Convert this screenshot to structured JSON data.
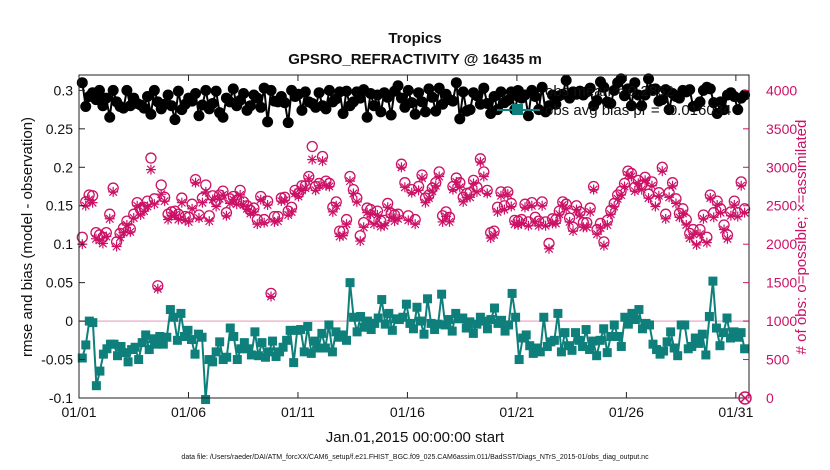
{
  "chart_data": {
    "type": "line",
    "title": "Tropics",
    "subtitle": "GPSRO_REFRACTIVITY @ 16435 m",
    "xlabel": "Jan.01,2015 00:00:00 start",
    "ylabel": "rmse and bias (model - observation)",
    "ylabel_right": "# of obs: o=possible; ×=assimilated",
    "footnote": "data file: /Users/raeder/DAI/ATM_forcXX/CAM6_setup/f.e21.FHIST_BGC.f09_025.CAM6assim.011/BadSST/Diags_NTrS_2015-01/obs_diag_output.nc",
    "ylim": [
      -0.1,
      0.32
    ],
    "ylim_right": [
      0,
      4200
    ],
    "xlim": [
      0,
      30.6
    ],
    "yticks": [
      "-0.1",
      "-0.05",
      "0",
      "0.05",
      "0.1",
      "0.15",
      "0.2",
      "0.25",
      "0.3"
    ],
    "yticks_right": [
      "0",
      "500",
      "1000",
      "1500",
      "2000",
      "2500",
      "3000",
      "3500",
      "4000"
    ],
    "xticks": [
      "01/01",
      "01/06",
      "01/11",
      "01/16",
      "01/21",
      "01/26",
      "01/31"
    ],
    "legend_location": "top-right",
    "series": [
      {
        "name": "obs  mean = 0.2862",
        "axis": "left",
        "color": "#000000",
        "values": [
          0.31,
          0.279,
          0.292,
          0.297,
          0.288,
          0.3,
          0.28,
          0.29,
          0.265,
          0.3,
          0.285,
          0.279,
          0.277,
          0.3,
          0.28,
          0.29,
          0.283,
          0.281,
          0.277,
          0.292,
          0.269,
          0.3,
          0.285,
          0.276,
          0.282,
          0.294,
          0.28,
          0.262,
          0.299,
          0.275,
          0.282,
          0.29,
          0.286,
          0.296,
          0.267,
          0.281,
          0.3,
          0.276,
          0.283,
          0.299,
          0.271,
          0.265,
          0.29,
          0.285,
          0.302,
          0.28,
          0.287,
          0.296,
          0.274,
          0.28,
          0.294,
          0.29,
          0.278,
          0.303,
          0.259,
          0.3,
          0.286,
          0.285,
          0.292,
          0.284,
          0.258,
          0.3,
          0.292,
          0.295,
          0.274,
          0.298,
          0.285,
          0.283,
          0.278,
          0.297,
          0.28,
          0.276,
          0.3,
          0.285,
          0.289,
          0.298,
          0.27,
          0.299,
          0.28,
          0.285,
          0.298,
          0.29,
          0.301,
          0.265,
          0.296,
          0.28,
          0.294,
          0.272,
          0.297,
          0.291,
          0.268,
          0.299,
          0.306,
          0.29,
          0.278,
          0.3,
          0.284,
          0.269,
          0.297,
          0.285,
          0.272,
          0.302,
          0.291,
          0.273,
          0.303,
          0.282,
          0.295,
          0.288,
          0.286,
          0.31,
          0.263,
          0.298,
          0.273,
          0.275,
          0.297,
          0.293,
          0.282,
          0.303,
          0.283,
          0.27,
          0.292,
          0.275,
          0.298,
          0.284,
          0.287,
          0.298,
          0.275,
          0.292,
          0.29,
          0.294,
          0.267,
          0.3,
          0.292,
          0.275,
          0.304,
          0.272,
          0.28,
          0.294,
          0.282,
          0.293,
          0.295,
          0.313,
          0.29,
          0.298,
          0.295,
          0.299,
          0.294,
          0.298,
          0.303,
          0.28,
          0.287,
          0.311,
          0.304,
          0.285,
          0.283,
          0.3,
          0.31,
          0.315,
          0.293,
          0.302,
          0.28,
          0.31,
          0.294,
          0.28,
          0.294,
          0.315,
          0.301,
          0.302,
          0.286,
          0.288,
          0.301,
          0.275,
          0.296,
          0.292,
          0.29,
          0.3,
          0.298,
          0.301,
          0.279,
          0.28,
          0.285,
          0.3,
          0.304,
          0.302,
          0.284,
          0.27,
          0.285,
          0.275,
          0.294,
          0.297,
          0.292,
          0.275,
          0.29,
          0.294
        ]
      },
      {
        "name": "obs  avg bias pr = -0.016034",
        "axis": "left",
        "color": "#0e7f7a",
        "values": [
          -0.048,
          -0.031,
          0.0,
          -0.002,
          -0.084,
          -0.065,
          -0.043,
          -0.036,
          -0.03,
          -0.03,
          -0.045,
          -0.033,
          -0.041,
          -0.053,
          -0.037,
          -0.034,
          -0.05,
          -0.028,
          -0.018,
          -0.037,
          -0.023,
          -0.03,
          -0.02,
          -0.03,
          -0.021,
          0.015,
          0.005,
          -0.025,
          0.01,
          -0.02,
          -0.012,
          -0.024,
          -0.043,
          -0.017,
          -0.021,
          -0.102,
          -0.05,
          -0.053,
          -0.04,
          -0.027,
          -0.05,
          -0.047,
          -0.009,
          -0.02,
          -0.05,
          -0.036,
          -0.028,
          -0.036,
          -0.044,
          -0.014,
          -0.045,
          -0.028,
          -0.047,
          -0.04,
          -0.026,
          -0.046,
          -0.04,
          -0.034,
          -0.025,
          -0.012,
          -0.054,
          -0.012,
          -0.011,
          -0.04,
          -0.007,
          -0.042,
          -0.026,
          -0.035,
          -0.016,
          -0.035,
          -0.005,
          -0.04,
          -0.014,
          -0.021,
          -0.018,
          -0.025,
          0.05,
          0.005,
          -0.014,
          0.006,
          -0.008,
          0.0,
          -0.011,
          -0.003,
          0.004,
          0.028,
          -0.004,
          0.01,
          -0.012,
          0.003,
          0.002,
          0.005,
          0.022,
          -0.003,
          -0.01,
          0.018,
          0.0,
          -0.017,
          0.029,
          -0.003,
          -0.011,
          -0.004,
          0.035,
          -0.005,
          0.002,
          -0.013,
          0.01,
          0.003,
          0.004,
          -0.009,
          -0.001,
          -0.016,
          -0.004,
          0.005,
          0.0,
          -0.01,
          0.002,
          0.017,
          -0.003,
          0.001,
          -0.013,
          -0.005,
          0.036,
          0.005,
          -0.05,
          -0.022,
          -0.018,
          -0.032,
          -0.042,
          -0.035,
          -0.04,
          0.005,
          -0.033,
          -0.027,
          -0.025,
          0.01,
          -0.04,
          -0.015,
          -0.032,
          -0.038,
          -0.015,
          -0.025,
          -0.033,
          -0.011,
          -0.037,
          -0.026,
          -0.045,
          -0.025,
          -0.01,
          -0.041,
          -0.02,
          -0.005,
          -0.02,
          -0.033,
          0.005,
          -0.004,
          0.01,
          0.002,
          0.015,
          -0.01,
          -0.003,
          -0.005,
          -0.03,
          -0.037,
          -0.043,
          -0.039,
          -0.027,
          -0.014,
          -0.035,
          -0.045,
          -0.005,
          -0.005,
          -0.036,
          -0.033,
          -0.022,
          -0.029,
          -0.017,
          -0.044,
          0.006,
          0.052,
          -0.009,
          -0.032,
          -0.015,
          0.004,
          -0.022,
          -0.014,
          -0.021,
          -0.015,
          -0.036
        ]
      },
      {
        "name": "# obs possible",
        "axis": "right",
        "color": "#cc1166",
        "marker": "circle",
        "values": [
          2090,
          2550,
          2640,
          2630,
          2150,
          2120,
          2090,
          2150,
          2390,
          2730,
          2030,
          2140,
          2210,
          2300,
          2200,
          2390,
          2540,
          2450,
          2480,
          2560,
          3120,
          2590,
          1460,
          2770,
          2610,
          2390,
          2420,
          2430,
          2390,
          2600,
          2360,
          2350,
          2520,
          2840,
          2380,
          2600,
          2770,
          2370,
          2630,
          2560,
          2640,
          2690,
          2410,
          2590,
          2620,
          2570,
          2700,
          2550,
          2500,
          2440,
          2470,
          2320,
          2620,
          2320,
          2560,
          1360,
          2360,
          2360,
          2600,
          2610,
          2430,
          2480,
          2700,
          2660,
          2760,
          2760,
          2880,
          3270,
          2750,
          2790,
          3140,
          2820,
          2790,
          2480,
          2550,
          2170,
          2170,
          2320,
          2880,
          2710,
          2600,
          2110,
          2280,
          2470,
          2450,
          2330,
          2430,
          2300,
          2310,
          2530,
          2400,
          2380,
          2390,
          3040,
          2800,
          2370,
          2710,
          2320,
          2750,
          2900,
          2600,
          2640,
          2730,
          2800,
          2940,
          2370,
          2420,
          2350,
          2750,
          2860,
          2800,
          2610,
          2660,
          2670,
          2830,
          2740,
          3110,
          2940,
          2700,
          2150,
          2170,
          2480,
          2680,
          2500,
          2680,
          2530,
          2310,
          2300,
          2320,
          2520,
          2290,
          2540,
          2350,
          2300,
          2550,
          2290,
          2010,
          2330,
          2320,
          2430,
          2550,
          2520,
          2340,
          2220,
          2500,
          2420,
          2280,
          2280,
          2470,
          2750,
          2190,
          2270,
          2030,
          2310,
          2440,
          2530,
          2640,
          2690,
          2790,
          2950,
          2920,
          2740,
          2830,
          2770,
          2870,
          2650,
          2810,
          2560,
          2670,
          3000,
          2390,
          2670,
          2800,
          2590,
          2400,
          2460,
          2320,
          2140,
          2190,
          2060,
          2190,
          2380,
          2090,
          2640,
          2410,
          2560,
          2460,
          2250,
          2120,
          2420,
          2560,
          2410,
          2810,
          2460
        ]
      },
      {
        "name": "# obs assimilated",
        "axis": "right",
        "color": "#cc1166",
        "marker": "asterisk",
        "values": [
          2000,
          2500,
          2580,
          2540,
          2070,
          2050,
          2010,
          2100,
          2330,
          2680,
          1970,
          2090,
          2150,
          2250,
          2160,
          2340,
          2500,
          2380,
          2430,
          2490,
          2970,
          2520,
          1420,
          2650,
          2560,
          2320,
          2370,
          2380,
          2320,
          2540,
          2310,
          2290,
          2460,
          2800,
          2340,
          2540,
          2680,
          2300,
          2580,
          2490,
          2590,
          2640,
          2370,
          2530,
          2580,
          2520,
          2640,
          2510,
          2460,
          2400,
          2420,
          2260,
          2580,
          2280,
          2510,
          1320,
          2290,
          2300,
          2560,
          2570,
          2380,
          2420,
          2660,
          2620,
          2700,
          2730,
          2850,
          3100,
          2700,
          2760,
          3080,
          2760,
          2750,
          2420,
          2500,
          2100,
          2110,
          2260,
          2820,
          2660,
          2550,
          2040,
          2220,
          2410,
          2390,
          2260,
          2380,
          2230,
          2240,
          2480,
          2350,
          2300,
          2330,
          3000,
          2740,
          2310,
          2670,
          2260,
          2700,
          2860,
          2540,
          2600,
          2690,
          2760,
          2880,
          2290,
          2360,
          2290,
          2710,
          2810,
          2740,
          2550,
          2610,
          2610,
          2790,
          2680,
          3070,
          2880,
          2660,
          2080,
          2120,
          2420,
          2630,
          2450,
          2650,
          2490,
          2260,
          2250,
          2270,
          2480,
          2240,
          2500,
          2290,
          2240,
          2500,
          2240,
          1940,
          2270,
          2270,
          2390,
          2510,
          2460,
          2290,
          2170,
          2450,
          2380,
          2220,
          2220,
          2420,
          2710,
          2130,
          2210,
          1980,
          2250,
          2390,
          2490,
          2590,
          2640,
          2750,
          2900,
          2880,
          2690,
          2790,
          2710,
          2830,
          2600,
          2760,
          2490,
          2630,
          2950,
          2330,
          2610,
          2760,
          2530,
          2350,
          2400,
          2250,
          2080,
          2130,
          1990,
          2130,
          2330,
          2020,
          2600,
          2350,
          2510,
          2410,
          2190,
          2070,
          2370,
          2510,
          2360,
          2760,
          2410
        ]
      }
    ],
    "annotations": [
      "0"
    ]
  }
}
